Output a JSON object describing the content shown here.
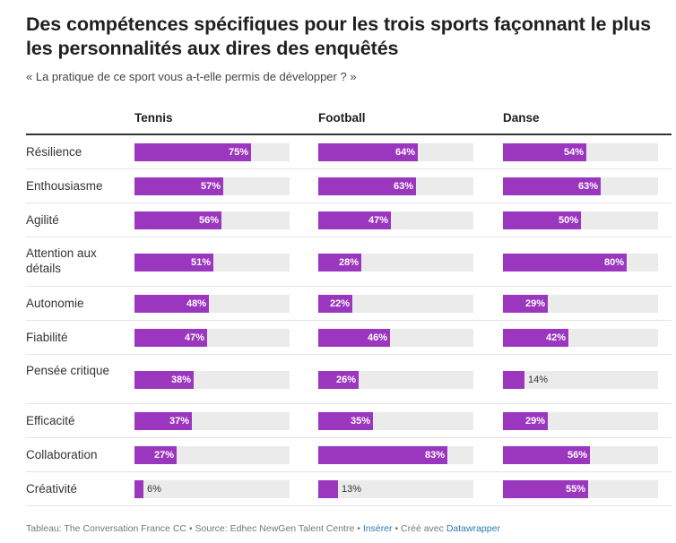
{
  "title": "Des compétences spécifiques pour les trois sports façonnant le plus les personnalités aux dires des enquêtés",
  "subtitle": "« La pratique de ce sport vous a-t-elle permis de développer ? »",
  "colors": {
    "bar": "#9b36bf",
    "track": "#ebebeb"
  },
  "chart_data": {
    "type": "bar",
    "title": "Des compétences spécifiques pour les trois sports façonnant le plus les personnalités aux dires des enquêtés",
    "categories": [
      "Résilience",
      "Enthousiasme",
      "Agilité",
      "Attention aux détails",
      "Autonomie",
      "Fiabilité",
      "Pensée critique",
      "Efficacité",
      "Collaboration",
      "Créativité"
    ],
    "series": [
      {
        "name": "Tennis",
        "values": [
          75,
          57,
          56,
          51,
          48,
          47,
          38,
          37,
          27,
          6
        ]
      },
      {
        "name": "Football",
        "values": [
          64,
          63,
          47,
          28,
          22,
          46,
          26,
          35,
          83,
          13
        ]
      },
      {
        "name": "Danse",
        "values": [
          54,
          63,
          50,
          80,
          29,
          42,
          14,
          29,
          56,
          55
        ]
      }
    ],
    "ylim": [
      0,
      100
    ],
    "unit": "%"
  },
  "footer": {
    "source": "Tableau: The Conversation France CC • Source: Edhec NewGen Talent Centre •",
    "insert": "Insérer",
    "made_with": "• Créé avec",
    "tool": "Datawrapper"
  }
}
